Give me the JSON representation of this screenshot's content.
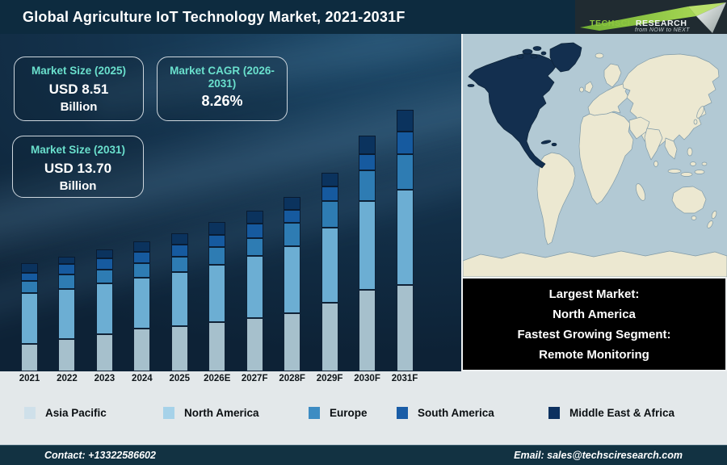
{
  "header": {
    "title": "Global Agriculture IoT Technology Market, 2021-2031F",
    "logo": {
      "brand1": "TechSci",
      "brand2": "Research",
      "tagline": "from NOW to NEXT"
    }
  },
  "cards": [
    {
      "label": "Market Size (2025)",
      "value": "USD 8.51",
      "unit": "Billion"
    },
    {
      "label": "Market CAGR (2026-2031)",
      "value": "8.26%",
      "unit": ""
    },
    {
      "label": "Market Size (2031)",
      "value": "USD 13.70",
      "unit": "Billion"
    }
  ],
  "chart_data": {
    "type": "bar",
    "stacked": true,
    "stack_order": "bottom_to_top",
    "title": "Global Agriculture IoT Technology Market, 2021-2031F",
    "categories": [
      "2021",
      "2022",
      "2023",
      "2024",
      "2025",
      "2026E",
      "2027F",
      "2028F",
      "2029F",
      "2030F",
      "2031F"
    ],
    "series": [
      {
        "name": "Asia Pacific",
        "color": "#a6c0cc",
        "legend_color": "#cfe0ea",
        "values": [
          34,
          40,
          46,
          53,
          56,
          61,
          66,
          72,
          85,
          101,
          107
        ]
      },
      {
        "name": "North America",
        "color": "#6caed3",
        "legend_color": "#a6d2e9",
        "values": [
          63,
          62,
          63,
          63,
          67,
          71,
          77,
          83,
          93,
          110,
          118
        ]
      },
      {
        "name": "Europe",
        "color": "#2e7cb3",
        "legend_color": "#3d8cc3",
        "values": [
          15,
          18,
          17,
          18,
          19,
          22,
          22,
          29,
          33,
          38,
          44
        ]
      },
      {
        "name": "South America",
        "color": "#165a9f",
        "legend_color": "#1a5da7",
        "values": [
          10,
          13,
          14,
          14,
          15,
          15,
          18,
          16,
          18,
          20,
          28
        ]
      },
      {
        "name": "Middle East & Africa",
        "color": "#0b335e",
        "legend_color": "#0d3160",
        "values": [
          12,
          9,
          11,
          13,
          14,
          16,
          16,
          16,
          17,
          23,
          27
        ]
      }
    ],
    "value_unit": "relative bar-segment heights in px (chart has no visible y-axis)",
    "legend_position": "bottom",
    "annotations": {
      "market_size_2025": "USD 8.51 Billion",
      "market_cagr_2026_2031": "8.26%",
      "market_size_2031": "USD 13.70 Billion"
    }
  },
  "info_box": {
    "lines": [
      "Largest Market:",
      "North America",
      "Fastest Growing Segment:",
      "Remote Monitoring"
    ]
  },
  "footer": {
    "contact": "Contact: +13322586602",
    "email": "Email: sales@techsciresearch.com"
  },
  "colors": {
    "header_bg": "#0d2b3f",
    "panel_bg": "#14334d",
    "accent_teal": "#6ae0cd",
    "strip_bg": "#e3e8ea",
    "footer_bg": "#123242",
    "info_box_bg": "#000000",
    "map_ocean": "#b2c9d4",
    "map_land": "#ece8d1",
    "map_highlight": "#132f4f",
    "logo_green": "#8dc63f"
  }
}
